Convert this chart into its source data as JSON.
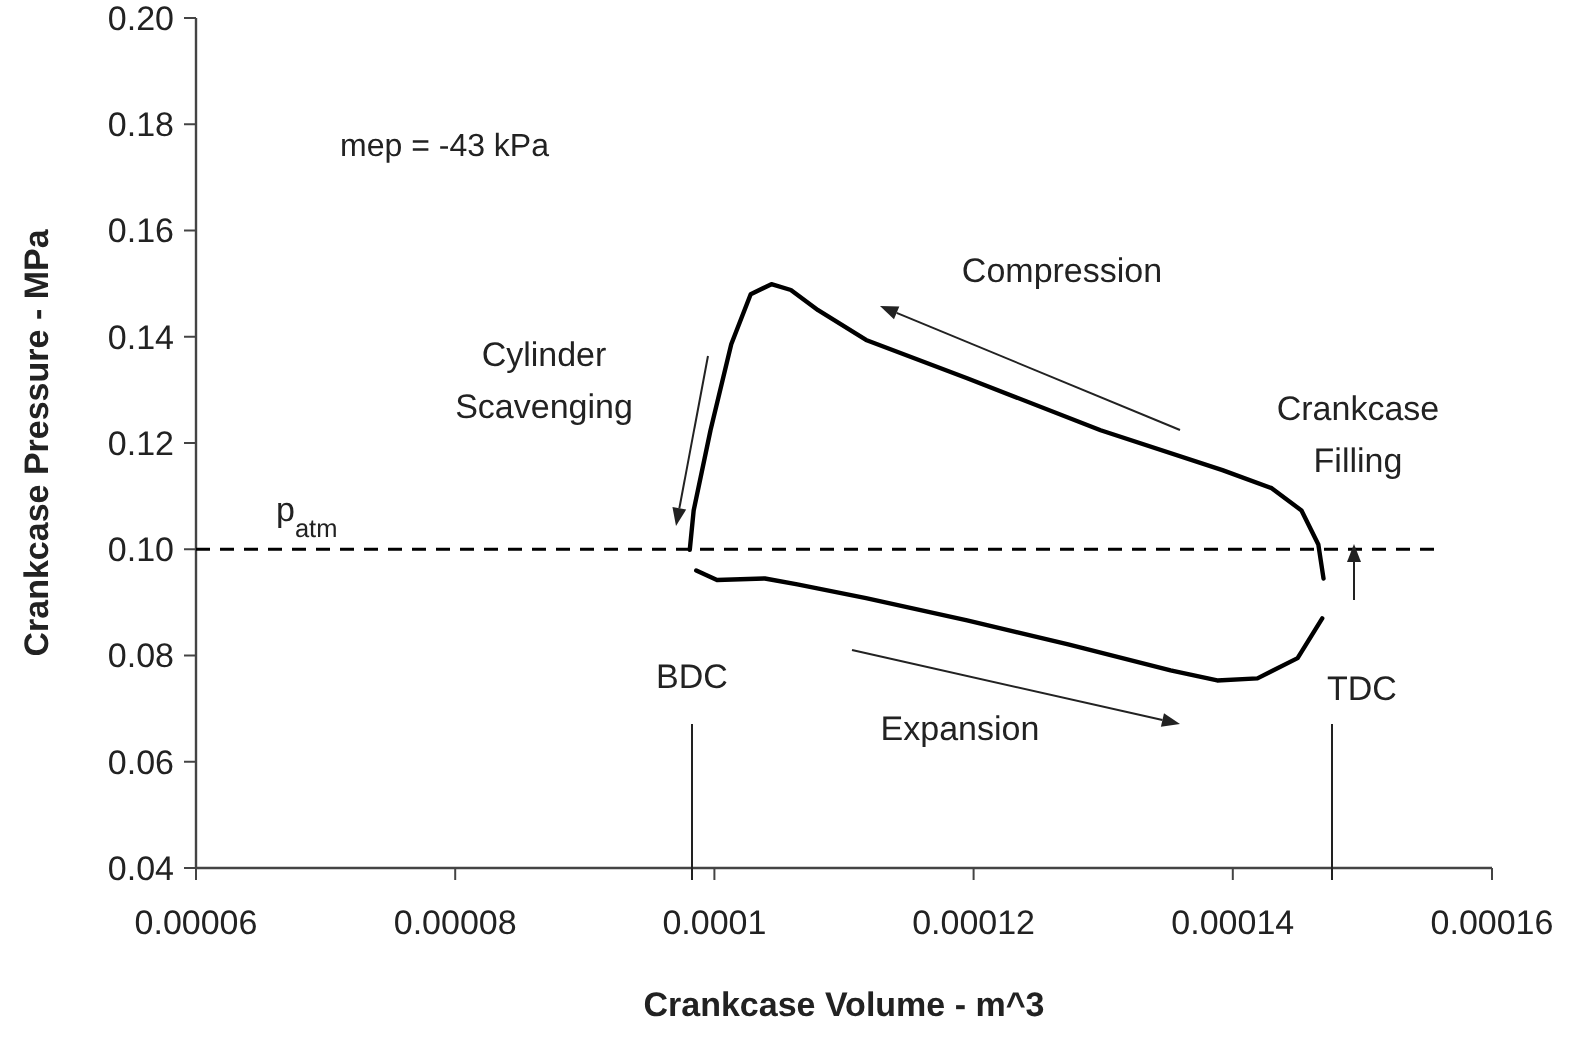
{
  "chart_data": {
    "type": "line",
    "xlabel": "Crankcase Volume - m^3",
    "ylabel": "Crankcase Pressure - MPa",
    "xlim": [
      6e-05,
      0.00016
    ],
    "ylim": [
      0.04,
      0.2
    ],
    "xticks": [
      {
        "value": 6e-05,
        "label": "0.00006"
      },
      {
        "value": 8e-05,
        "label": "0.00008"
      },
      {
        "value": 0.0001,
        "label": "0.0001"
      },
      {
        "value": 0.00012,
        "label": "0.00012"
      },
      {
        "value": 0.00014,
        "label": "0.00014"
      },
      {
        "value": 0.00016,
        "label": "0.00016"
      }
    ],
    "yticks": [
      {
        "value": 0.04,
        "label": "0.04"
      },
      {
        "value": 0.06,
        "label": "0.06"
      },
      {
        "value": 0.08,
        "label": "0.08"
      },
      {
        "value": 0.1,
        "label": "0.10"
      },
      {
        "value": 0.12,
        "label": "0.12"
      },
      {
        "value": 0.14,
        "label": "0.14"
      },
      {
        "value": 0.16,
        "label": "0.16"
      },
      {
        "value": 0.18,
        "label": "0.18"
      },
      {
        "value": 0.2,
        "label": "0.20"
      }
    ],
    "series": [
      {
        "color": "#000000",
        "x": [
          9.81e-05,
          9.84e-05,
          9.97e-05,
          0.0001013,
          0.0001028,
          0.0001044,
          0.0001059,
          0.000108,
          0.0001117,
          0.0001195,
          0.0001298,
          0.0001392,
          0.000143,
          0.0001453,
          0.0001466,
          0.000147
        ],
        "values": [
          0.0999,
          0.1073,
          0.1224,
          0.1386,
          0.148,
          0.1499,
          0.1488,
          0.145,
          0.1394,
          0.1322,
          0.1224,
          0.1149,
          0.1115,
          0.1073,
          0.1009,
          0.0945
        ]
      },
      {
        "color": "#000000",
        "x": [
          9.86e-05,
          0.0001002,
          0.0001039,
          0.0001064,
          0.0001117,
          0.0001195,
          0.0001273,
          0.0001352,
          0.0001388,
          0.0001419,
          0.000145,
          0.0001469
        ],
        "values": [
          0.096,
          0.0942,
          0.0945,
          0.0934,
          0.0908,
          0.0866,
          0.0821,
          0.0772,
          0.0753,
          0.0757,
          0.0795,
          0.087
        ]
      }
    ],
    "marker": "none",
    "line_style": "solid",
    "grid": false,
    "ref_lines": [
      {
        "axis": "y",
        "value": 0.1,
        "label": "p$_{atm}$",
        "color": "#000000",
        "line_style": "dashed"
      }
    ],
    "annotations": [
      "mep = -43 kPa",
      "Cylinder\nScavenging",
      "Compression",
      "Crankcase\nFilling",
      "Expansion",
      "BDC",
      "TDC"
    ]
  }
}
